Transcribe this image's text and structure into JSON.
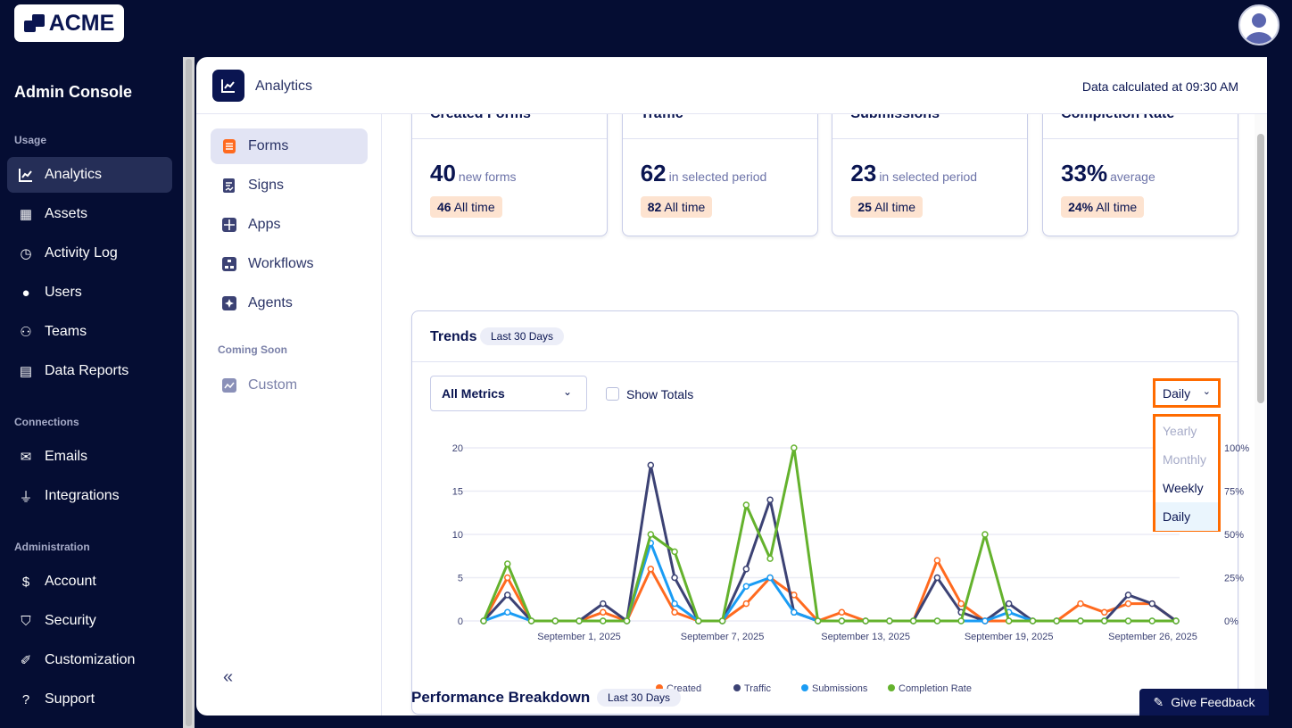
{
  "brand": {
    "logo_text": "ACME"
  },
  "sidebar": {
    "title": "Admin Console",
    "sections": [
      {
        "label": "Usage",
        "items": [
          {
            "label": "Analytics",
            "icon": "chart-line-icon",
            "active": true
          },
          {
            "label": "Assets",
            "icon": "grid-icon"
          },
          {
            "label": "Activity Log",
            "icon": "history-icon"
          },
          {
            "label": "Users",
            "icon": "user-icon"
          },
          {
            "label": "Teams",
            "icon": "team-icon"
          },
          {
            "label": "Data Reports",
            "icon": "report-icon"
          }
        ]
      },
      {
        "label": "Connections",
        "items": [
          {
            "label": "Emails",
            "icon": "mail-icon"
          },
          {
            "label": "Integrations",
            "icon": "plug-icon"
          }
        ]
      },
      {
        "label": "Administration",
        "items": [
          {
            "label": "Account",
            "icon": "invoice-icon"
          },
          {
            "label": "Security",
            "icon": "shield-icon"
          },
          {
            "label": "Customization",
            "icon": "brush-icon"
          },
          {
            "label": "Support",
            "icon": "help-icon"
          }
        ]
      }
    ]
  },
  "header": {
    "title": "Analytics",
    "calculated": "Data calculated at 09:30 AM"
  },
  "subnav": {
    "items": [
      {
        "label": "Forms",
        "icon": "forms-icon",
        "active": true
      },
      {
        "label": "Signs",
        "icon": "sign-icon"
      },
      {
        "label": "Apps",
        "icon": "apps-icon"
      },
      {
        "label": "Workflows",
        "icon": "workflow-icon"
      },
      {
        "label": "Agents",
        "icon": "agent-icon"
      }
    ],
    "coming_soon_label": "Coming Soon",
    "coming_soon": [
      {
        "label": "Custom",
        "icon": "custom-chart-icon"
      }
    ],
    "collapse": "«"
  },
  "stats": [
    {
      "title": "Created Forms",
      "value": "40",
      "sub": "new forms",
      "all_value": "46",
      "all_label": "All time"
    },
    {
      "title": "Traffic",
      "value": "62",
      "sub": "in selected period",
      "all_value": "82",
      "all_label": "All time"
    },
    {
      "title": "Submissions",
      "value": "23",
      "sub": "in selected period",
      "all_value": "25",
      "all_label": "All time"
    },
    {
      "title": "Completion Rate",
      "value": "33%",
      "sub": "average",
      "all_value": "24%",
      "all_label": "All time"
    }
  ],
  "trends": {
    "title": "Trends",
    "badge": "Last 30 Days",
    "metric_select": "All Metrics",
    "show_totals": "Show Totals",
    "show_totals_checked": false,
    "granularity": "Daily",
    "granularity_options": [
      "Yearly",
      "Monthly",
      "Weekly",
      "Daily"
    ]
  },
  "chart_data": {
    "type": "line",
    "x": [
      "2025-08-28",
      "2025-08-29",
      "2025-08-30",
      "2025-08-31",
      "2025-09-01",
      "2025-09-02",
      "2025-09-03",
      "2025-09-04",
      "2025-09-05",
      "2025-09-06",
      "2025-09-07",
      "2025-09-08",
      "2025-09-09",
      "2025-09-10",
      "2025-09-11",
      "2025-09-12",
      "2025-09-13",
      "2025-09-14",
      "2025-09-15",
      "2025-09-16",
      "2025-09-17",
      "2025-09-18",
      "2025-09-19",
      "2025-09-20",
      "2025-09-21",
      "2025-09-22",
      "2025-09-23",
      "2025-09-24",
      "2025-09-25",
      "2025-09-26"
    ],
    "x_tick_labels": [
      "September 1, 2025",
      "September 7, 2025",
      "September 13, 2025",
      "September 19, 2025",
      "September 26, 2025"
    ],
    "y_ticks": [
      "0",
      "5",
      "10",
      "15",
      "20"
    ],
    "ylim": [
      0,
      20
    ],
    "y2_ticks": [
      "0%",
      "25%",
      "50%",
      "75%",
      "100%"
    ],
    "y2lim": [
      0,
      100
    ],
    "grid": true,
    "legend": "bottom",
    "series": [
      {
        "name": "Created",
        "color": "#ff6a1f",
        "axis": "left",
        "values": [
          0,
          5,
          0,
          0,
          0,
          1,
          0,
          6,
          1,
          0,
          0,
          2,
          5,
          3,
          0,
          1,
          0,
          0,
          0,
          7,
          2,
          0,
          0,
          0,
          0,
          2,
          1,
          2,
          2,
          0
        ]
      },
      {
        "name": "Traffic",
        "color": "#3c4274",
        "axis": "left",
        "values": [
          0,
          3,
          0,
          0,
          0,
          2,
          0,
          18,
          5,
          0,
          0,
          6,
          14,
          1,
          0,
          0,
          0,
          0,
          0,
          5,
          1,
          0,
          2,
          0,
          0,
          0,
          0,
          3,
          2,
          0
        ]
      },
      {
        "name": "Submissions",
        "color": "#1a9cf4",
        "axis": "left",
        "values": [
          0,
          1,
          0,
          0,
          0,
          0,
          0,
          9,
          2,
          0,
          0,
          4,
          5,
          1,
          0,
          0,
          0,
          0,
          0,
          0,
          0,
          0,
          1,
          0,
          0,
          0,
          0,
          0,
          0,
          0
        ]
      },
      {
        "name": "Completion Rate",
        "color": "#64b22d",
        "axis": "right",
        "values": [
          0,
          33,
          0,
          0,
          0,
          0,
          0,
          50,
          40,
          0,
          0,
          67,
          36,
          100,
          0,
          0,
          0,
          0,
          0,
          0,
          0,
          50,
          0,
          0,
          0,
          0,
          0,
          0,
          0,
          0
        ]
      }
    ]
  },
  "performance": {
    "title": "Performance Breakdown",
    "badge": "Last 30 Days"
  },
  "feedback": {
    "label": "Give Feedback"
  }
}
